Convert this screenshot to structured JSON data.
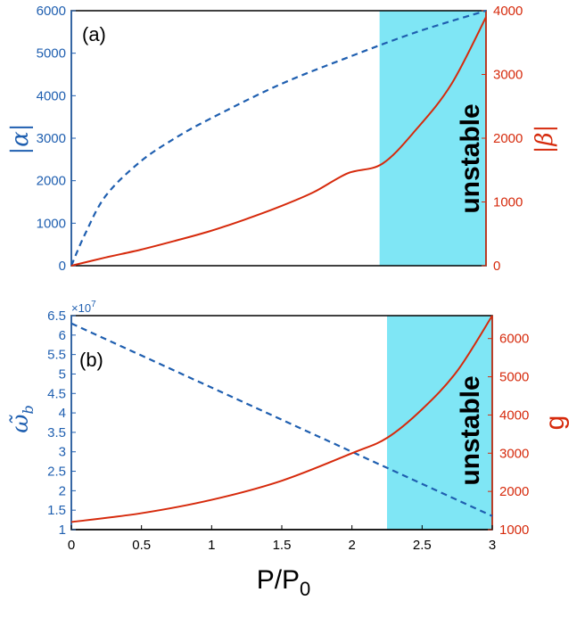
{
  "colors": {
    "left_axis": "#1f5fb0",
    "right_axis": "#d62a0c",
    "unstable_fill": "#7fe6f5"
  },
  "figure": {
    "xlabel_main": "P/P",
    "xlabel_sub": "0"
  },
  "chart_data": [
    {
      "type": "line",
      "panel_label": "(a)",
      "region_label": "unstable",
      "unstable_range": [
        2.23,
        3.0
      ],
      "xlim": [
        0,
        3
      ],
      "left_axis": {
        "label": "|α|",
        "lim": [
          0,
          6000
        ],
        "ticks": [
          "0",
          "1000",
          "2000",
          "3000",
          "4000",
          "5000",
          "6000"
        ]
      },
      "right_axis": {
        "label": "|β|",
        "lim": [
          0,
          4000
        ],
        "ticks": [
          "0",
          "1000",
          "2000",
          "3000",
          "4000"
        ]
      },
      "series": [
        {
          "name": "|alpha|",
          "axis": "left",
          "style": "dashed",
          "x": [
            0,
            0.1,
            0.25,
            0.5,
            0.75,
            1.0,
            1.5,
            2.0,
            2.5,
            3.0
          ],
          "values": [
            0,
            750,
            1650,
            2450,
            3000,
            3450,
            4250,
            4900,
            5500,
            6000
          ]
        },
        {
          "name": "|beta|",
          "axis": "right",
          "style": "solid",
          "x": [
            0,
            0.25,
            0.5,
            0.75,
            1.0,
            1.25,
            1.5,
            1.75,
            2.0,
            2.25,
            2.5,
            2.75,
            3.0
          ],
          "values": [
            0,
            130,
            250,
            390,
            540,
            720,
            920,
            1150,
            1450,
            1600,
            2150,
            2850,
            3900
          ]
        }
      ]
    },
    {
      "type": "line",
      "panel_label": "(b)",
      "region_label": "unstable",
      "unstable_range": [
        2.25,
        3.0
      ],
      "xlim": [
        0,
        3
      ],
      "xticks": [
        "0",
        "0.5",
        "1",
        "1.5",
        "2",
        "2.5",
        "3"
      ],
      "left_axis": {
        "label": "ω̃",
        "label_sub": "b",
        "lim": [
          1,
          6.5
        ],
        "exponent": "×10",
        "exponent_power": "7",
        "ticks": [
          "1",
          "1.5",
          "2",
          "2.5",
          "3",
          "3.5",
          "4",
          "4.5",
          "5",
          "5.5",
          "6",
          "6.5"
        ]
      },
      "right_axis": {
        "label": "g",
        "lim": [
          1000,
          6600
        ],
        "ticks": [
          "1000",
          "2000",
          "3000",
          "4000",
          "5000",
          "6000"
        ]
      },
      "series": [
        {
          "name": "omega_b",
          "axis": "left",
          "style": "dashed",
          "x": [
            0,
            3
          ],
          "values": [
            6.3,
            1.35
          ]
        },
        {
          "name": "g",
          "axis": "right",
          "style": "solid",
          "x": [
            0,
            0.5,
            1.0,
            1.5,
            2.0,
            2.25,
            2.5,
            2.75,
            3.0
          ],
          "values": [
            1200,
            1430,
            1780,
            2280,
            3000,
            3400,
            4150,
            5150,
            6600
          ]
        }
      ]
    }
  ]
}
